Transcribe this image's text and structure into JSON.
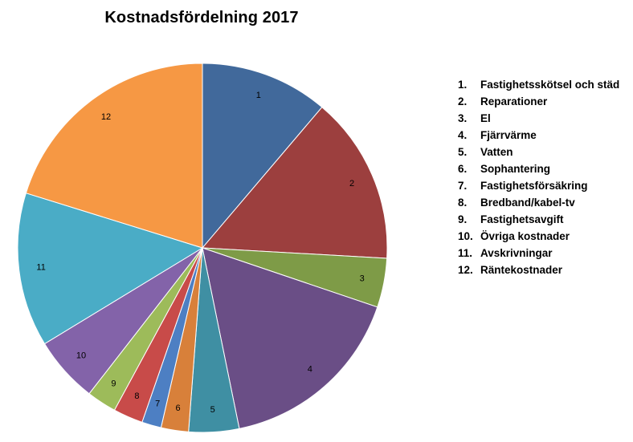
{
  "chart_data": {
    "type": "pie",
    "title": "Kostnadsfördelning 2017",
    "slices": [
      {
        "label": "1",
        "value": 11.2,
        "color": "#41699b"
      },
      {
        "label": "2",
        "value": 14.7,
        "color": "#9c3f3e"
      },
      {
        "label": "3",
        "value": 4.3,
        "color": "#7e9b47"
      },
      {
        "label": "4",
        "value": 16.6,
        "color": "#6a4e86"
      },
      {
        "label": "5",
        "value": 4.4,
        "color": "#3f8fa3"
      },
      {
        "label": "6",
        "value": 2.4,
        "color": "#d8803a"
      },
      {
        "label": "7",
        "value": 1.7,
        "color": "#4d7fc3"
      },
      {
        "label": "8",
        "value": 2.6,
        "color": "#c84b49"
      },
      {
        "label": "9",
        "value": 2.6,
        "color": "#9dbb5a"
      },
      {
        "label": "10",
        "value": 5.8,
        "color": "#8363a9"
      },
      {
        "label": "11",
        "value": 13.5,
        "color": "#4aacc6"
      },
      {
        "label": "12",
        "value": 20.2,
        "color": "#f69844"
      }
    ],
    "legend": {
      "position": "right",
      "items": [
        "1.\tFastighetsskötsel och städ",
        "2.\tReparationer",
        "3.\tEl",
        "4.\tFjärrvärme",
        "5.\tVatten",
        "6.\tSophantering",
        "7.\tFastighetsförsäkring",
        "8.\tBredband/kabel-tv",
        "9.\tFastighetsavgift",
        "10.\tÖvriga kostnader",
        "11.\tAvskrivningar",
        "12.\tRäntekostnader"
      ]
    }
  }
}
